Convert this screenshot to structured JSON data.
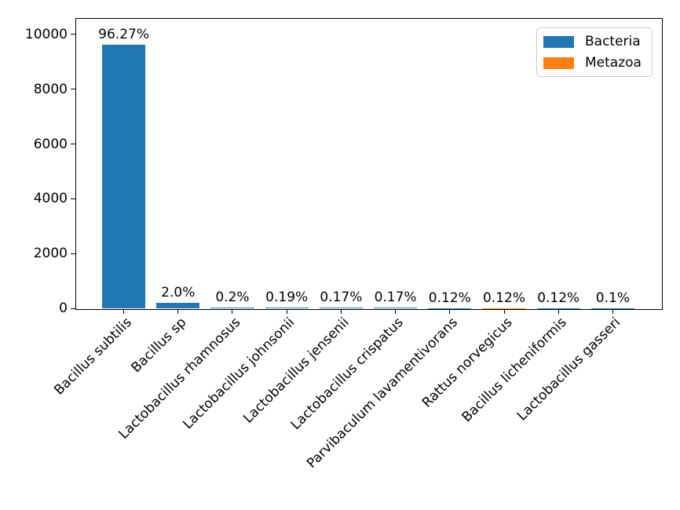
{
  "chart_data": {
    "type": "bar",
    "title": "",
    "xlabel": "",
    "ylabel": "",
    "categories": [
      "Bacillus subtilis",
      "Bacillus sp",
      "Lactobacillus rhamnosus",
      "Lactobacillus johnsonii",
      "Lactobacillus jensenii",
      "Lactobacillus crispatus",
      "Parvibaculum lavamentivorans",
      "Rattus norvegicus",
      "Bacillus licheniformis",
      "Lactobacillus gasseri"
    ],
    "values": [
      9627,
      200,
      20,
      19,
      17,
      17,
      12,
      12,
      12,
      10
    ],
    "bar_labels": [
      "96.27%",
      "2.0%",
      "0.2%",
      "0.19%",
      "0.17%",
      "0.17%",
      "0.12%",
      "0.12%",
      "0.12%",
      "0.1%"
    ],
    "groups": [
      "Bacteria",
      "Bacteria",
      "Bacteria",
      "Bacteria",
      "Bacteria",
      "Bacteria",
      "Bacteria",
      "Metazoa",
      "Bacteria",
      "Bacteria"
    ],
    "legend": [
      {
        "label": "Bacteria",
        "color": "#1f77b4"
      },
      {
        "label": "Metazoa",
        "color": "#ff7f0e"
      }
    ],
    "legend_position": "upper right",
    "y_ticks": [
      0,
      2000,
      4000,
      6000,
      8000,
      10000
    ],
    "ylim": [
      0,
      10600
    ],
    "grid": false,
    "x_tick_rotation_deg": 45
  }
}
